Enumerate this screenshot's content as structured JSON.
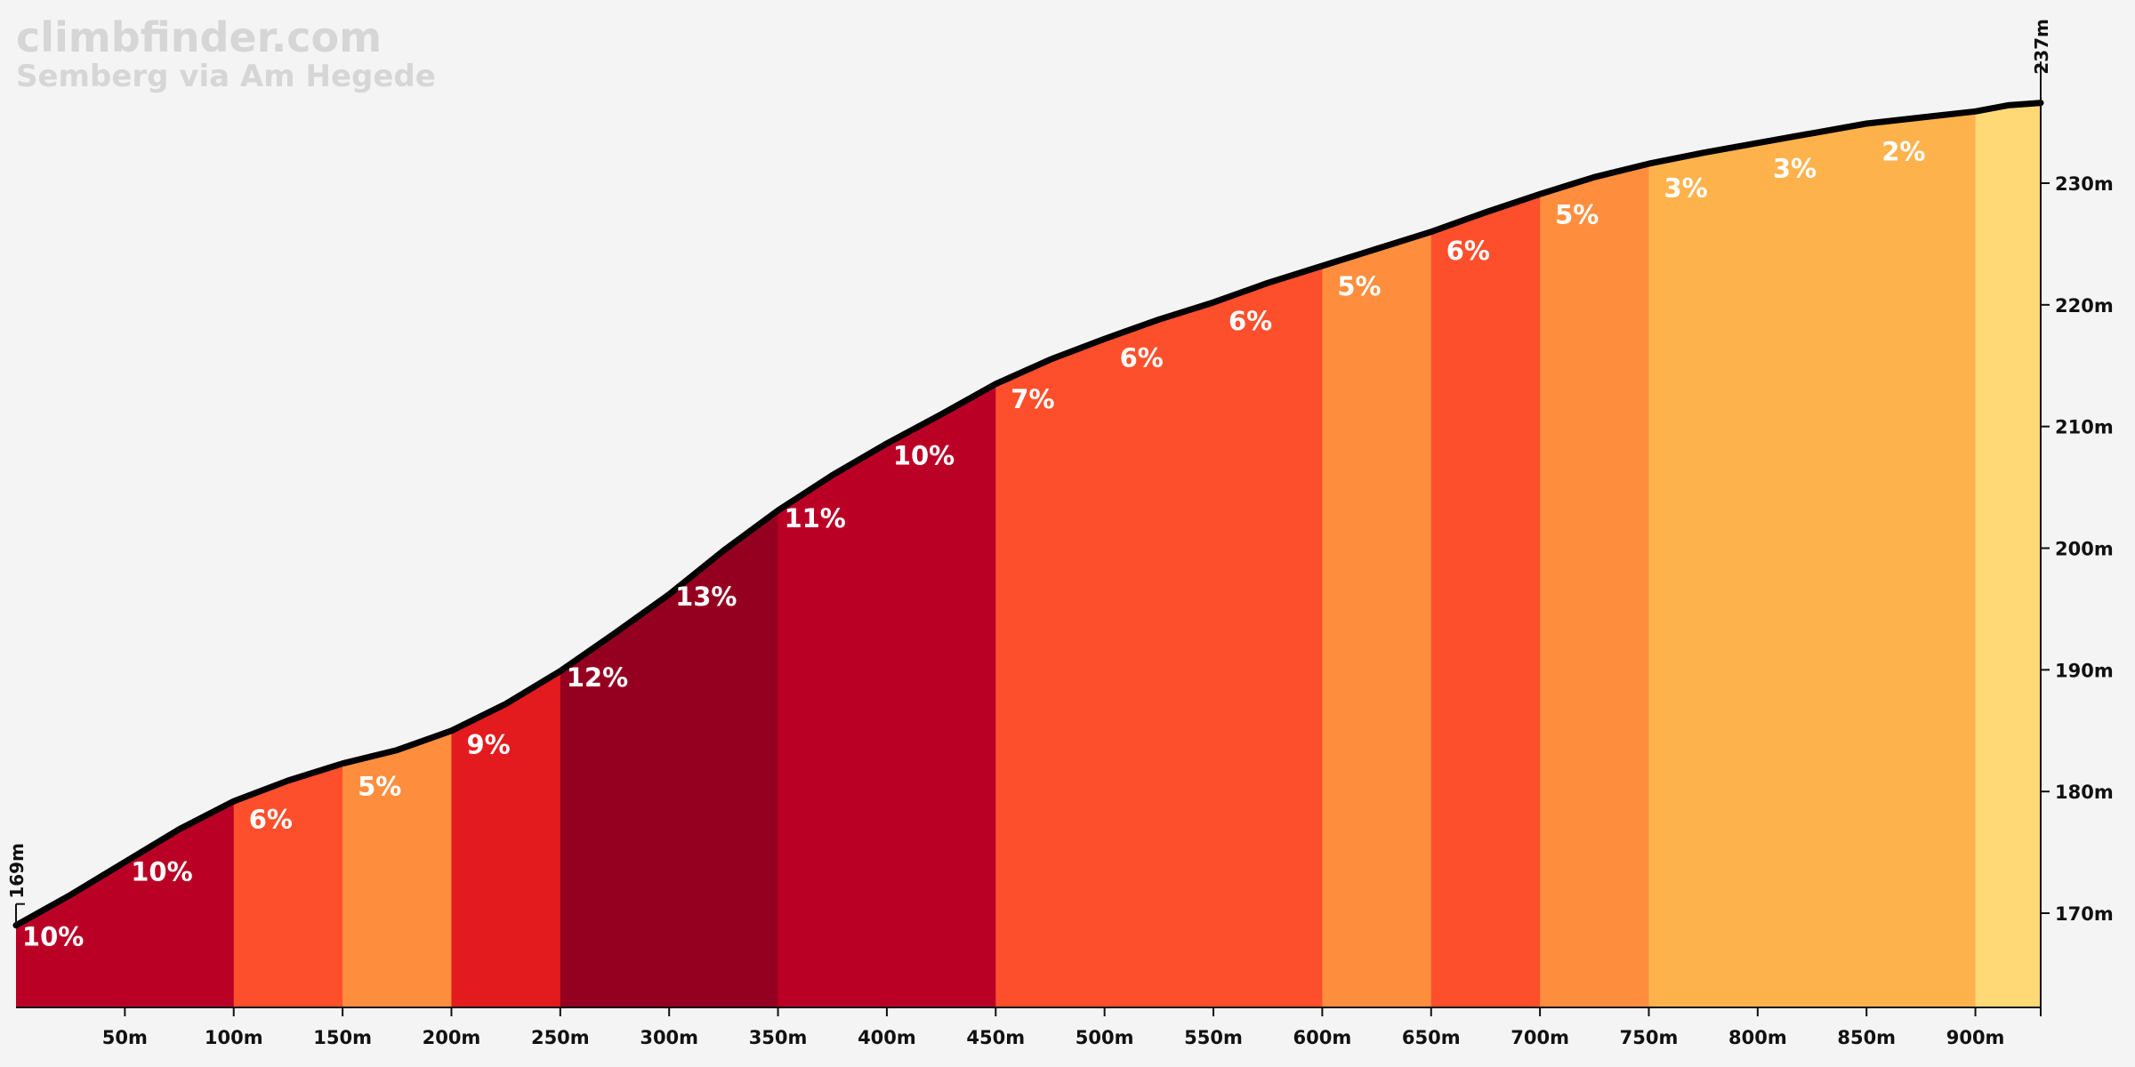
{
  "chart_data": {
    "type": "area",
    "title": "climbfinder.com",
    "subtitle": "Semberg via Am Hegede",
    "xlabel": "",
    "ylabel": "",
    "xlim": [
      0,
      930
    ],
    "ylim": [
      161,
      240
    ],
    "x_ticks": [
      50,
      100,
      150,
      200,
      250,
      300,
      350,
      400,
      450,
      500,
      550,
      600,
      650,
      700,
      750,
      800,
      850,
      900
    ],
    "x_tick_labels": [
      "50m",
      "100m",
      "150m",
      "200m",
      "250m",
      "300m",
      "350m",
      "400m",
      "450m",
      "500m",
      "550m",
      "600m",
      "650m",
      "700m",
      "750m",
      "800m",
      "850m",
      "900m"
    ],
    "y_ticks": [
      170,
      180,
      190,
      200,
      210,
      220,
      230
    ],
    "y_tick_labels": [
      "170m",
      "180m",
      "190m",
      "200m",
      "210m",
      "220m",
      "230m"
    ],
    "start_label": "169m",
    "end_label": "237m",
    "profile": {
      "x": [
        0,
        25,
        50,
        75,
        100,
        125,
        150,
        175,
        200,
        225,
        250,
        275,
        300,
        325,
        350,
        375,
        400,
        425,
        450,
        475,
        500,
        525,
        550,
        575,
        600,
        625,
        650,
        675,
        700,
        725,
        750,
        775,
        800,
        825,
        850,
        875,
        900,
        915,
        930
      ],
      "elevation": [
        169,
        171.5,
        174.2,
        176.9,
        179.2,
        180.9,
        182.3,
        183.4,
        185.0,
        187.2,
        189.9,
        193.0,
        196.2,
        199.8,
        203.1,
        206.0,
        208.6,
        211.0,
        213.5,
        215.5,
        217.2,
        218.8,
        220.2,
        221.8,
        223.2,
        224.6,
        226.0,
        227.6,
        229.1,
        230.5,
        231.6,
        232.5,
        233.3,
        234.1,
        234.9,
        235.4,
        235.9,
        236.4,
        236.6
      ]
    },
    "segments": [
      {
        "start": 0,
        "end": 100,
        "grade": 10,
        "color": "#bb0026"
      },
      {
        "start": 100,
        "end": 150,
        "grade": 6,
        "color": "#fd4f2c"
      },
      {
        "start": 150,
        "end": 200,
        "grade": 5,
        "color": "#fe8e3e"
      },
      {
        "start": 200,
        "end": 250,
        "grade": 9,
        "color": "#e31b1e"
      },
      {
        "start": 250,
        "end": 350,
        "grade": 13,
        "color": "#960020"
      },
      {
        "start": 350,
        "end": 450,
        "grade": 10,
        "color": "#bb0026"
      },
      {
        "start": 450,
        "end": 600,
        "grade": 7,
        "color": "#fd4f2c"
      },
      {
        "start": 600,
        "end": 650,
        "grade": 5,
        "color": "#fe8e3e"
      },
      {
        "start": 650,
        "end": 700,
        "grade": 6,
        "color": "#fd4f2c"
      },
      {
        "start": 700,
        "end": 750,
        "grade": 5,
        "color": "#fe8e3e"
      },
      {
        "start": 750,
        "end": 900,
        "grade": 3,
        "color": "#feb24c"
      },
      {
        "start": 900,
        "end": 930,
        "grade": 2,
        "color": "#fed976"
      }
    ],
    "grade_labels": [
      {
        "x": 17,
        "grade": "10%"
      },
      {
        "x": 67,
        "grade": "10%"
      },
      {
        "x": 117,
        "grade": "6%"
      },
      {
        "x": 167,
        "grade": "5%"
      },
      {
        "x": 217,
        "grade": "9%"
      },
      {
        "x": 267,
        "grade": "12%"
      },
      {
        "x": 317,
        "grade": "13%"
      },
      {
        "x": 367,
        "grade": "11%"
      },
      {
        "x": 417,
        "grade": "10%"
      },
      {
        "x": 467,
        "grade": "7%"
      },
      {
        "x": 517,
        "grade": "6%"
      },
      {
        "x": 567,
        "grade": "6%"
      },
      {
        "x": 617,
        "grade": "5%"
      },
      {
        "x": 667,
        "grade": "6%"
      },
      {
        "x": 717,
        "grade": "5%"
      },
      {
        "x": 767,
        "grade": "3%"
      },
      {
        "x": 817,
        "grade": "3%"
      },
      {
        "x": 867,
        "grade": "2%"
      }
    ]
  }
}
